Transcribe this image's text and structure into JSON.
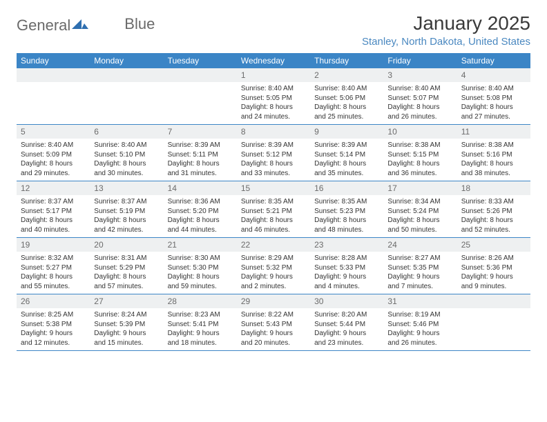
{
  "logo": {
    "text1": "General",
    "text2": "Blue"
  },
  "title": "January 2025",
  "location": "Stanley, North Dakota, United States",
  "colors": {
    "header_bg": "#3b85c6",
    "header_text": "#ffffff",
    "daynum_bg": "#eef0f1",
    "daynum_text": "#6b6b6b",
    "body_text": "#333333",
    "location_text": "#4a88c0",
    "row_border": "#3b85c6",
    "logo_text": "#6a6a6a",
    "logo_mark": "#2f6fb0"
  },
  "weekdays": [
    "Sunday",
    "Monday",
    "Tuesday",
    "Wednesday",
    "Thursday",
    "Friday",
    "Saturday"
  ],
  "weeks": [
    [
      {
        "empty": true
      },
      {
        "empty": true
      },
      {
        "empty": true
      },
      {
        "n": "1",
        "sr": "8:40 AM",
        "ss": "5:05 PM",
        "dh": "8",
        "dm": "24"
      },
      {
        "n": "2",
        "sr": "8:40 AM",
        "ss": "5:06 PM",
        "dh": "8",
        "dm": "25"
      },
      {
        "n": "3",
        "sr": "8:40 AM",
        "ss": "5:07 PM",
        "dh": "8",
        "dm": "26"
      },
      {
        "n": "4",
        "sr": "8:40 AM",
        "ss": "5:08 PM",
        "dh": "8",
        "dm": "27"
      }
    ],
    [
      {
        "n": "5",
        "sr": "8:40 AM",
        "ss": "5:09 PM",
        "dh": "8",
        "dm": "29"
      },
      {
        "n": "6",
        "sr": "8:40 AM",
        "ss": "5:10 PM",
        "dh": "8",
        "dm": "30"
      },
      {
        "n": "7",
        "sr": "8:39 AM",
        "ss": "5:11 PM",
        "dh": "8",
        "dm": "31"
      },
      {
        "n": "8",
        "sr": "8:39 AM",
        "ss": "5:12 PM",
        "dh": "8",
        "dm": "33"
      },
      {
        "n": "9",
        "sr": "8:39 AM",
        "ss": "5:14 PM",
        "dh": "8",
        "dm": "35"
      },
      {
        "n": "10",
        "sr": "8:38 AM",
        "ss": "5:15 PM",
        "dh": "8",
        "dm": "36"
      },
      {
        "n": "11",
        "sr": "8:38 AM",
        "ss": "5:16 PM",
        "dh": "8",
        "dm": "38"
      }
    ],
    [
      {
        "n": "12",
        "sr": "8:37 AM",
        "ss": "5:17 PM",
        "dh": "8",
        "dm": "40"
      },
      {
        "n": "13",
        "sr": "8:37 AM",
        "ss": "5:19 PM",
        "dh": "8",
        "dm": "42"
      },
      {
        "n": "14",
        "sr": "8:36 AM",
        "ss": "5:20 PM",
        "dh": "8",
        "dm": "44"
      },
      {
        "n": "15",
        "sr": "8:35 AM",
        "ss": "5:21 PM",
        "dh": "8",
        "dm": "46"
      },
      {
        "n": "16",
        "sr": "8:35 AM",
        "ss": "5:23 PM",
        "dh": "8",
        "dm": "48"
      },
      {
        "n": "17",
        "sr": "8:34 AM",
        "ss": "5:24 PM",
        "dh": "8",
        "dm": "50"
      },
      {
        "n": "18",
        "sr": "8:33 AM",
        "ss": "5:26 PM",
        "dh": "8",
        "dm": "52"
      }
    ],
    [
      {
        "n": "19",
        "sr": "8:32 AM",
        "ss": "5:27 PM",
        "dh": "8",
        "dm": "55"
      },
      {
        "n": "20",
        "sr": "8:31 AM",
        "ss": "5:29 PM",
        "dh": "8",
        "dm": "57"
      },
      {
        "n": "21",
        "sr": "8:30 AM",
        "ss": "5:30 PM",
        "dh": "8",
        "dm": "59"
      },
      {
        "n": "22",
        "sr": "8:29 AM",
        "ss": "5:32 PM",
        "dh": "9",
        "dm": "2"
      },
      {
        "n": "23",
        "sr": "8:28 AM",
        "ss": "5:33 PM",
        "dh": "9",
        "dm": "4"
      },
      {
        "n": "24",
        "sr": "8:27 AM",
        "ss": "5:35 PM",
        "dh": "9",
        "dm": "7"
      },
      {
        "n": "25",
        "sr": "8:26 AM",
        "ss": "5:36 PM",
        "dh": "9",
        "dm": "9"
      }
    ],
    [
      {
        "n": "26",
        "sr": "8:25 AM",
        "ss": "5:38 PM",
        "dh": "9",
        "dm": "12"
      },
      {
        "n": "27",
        "sr": "8:24 AM",
        "ss": "5:39 PM",
        "dh": "9",
        "dm": "15"
      },
      {
        "n": "28",
        "sr": "8:23 AM",
        "ss": "5:41 PM",
        "dh": "9",
        "dm": "18"
      },
      {
        "n": "29",
        "sr": "8:22 AM",
        "ss": "5:43 PM",
        "dh": "9",
        "dm": "20"
      },
      {
        "n": "30",
        "sr": "8:20 AM",
        "ss": "5:44 PM",
        "dh": "9",
        "dm": "23"
      },
      {
        "n": "31",
        "sr": "8:19 AM",
        "ss": "5:46 PM",
        "dh": "9",
        "dm": "26"
      },
      {
        "empty": true
      }
    ]
  ],
  "labels": {
    "sunrise": "Sunrise:",
    "sunset": "Sunset:",
    "daylight": "Daylight:",
    "hours": "hours",
    "and": "and",
    "minutes": "minutes."
  }
}
